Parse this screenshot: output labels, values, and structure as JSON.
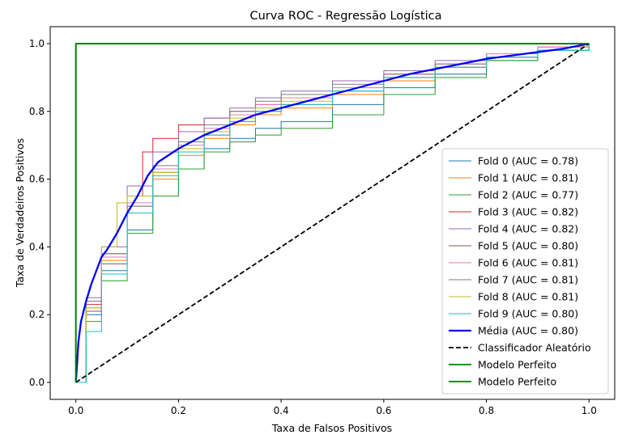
{
  "chart_data": {
    "type": "line",
    "title": "Curva ROC - Regressão Logística",
    "xlabel": "Taxa de Falsos Positivos",
    "ylabel": "Taxa de Verdadeiros Positivos",
    "xlim": [
      -0.05,
      1.05
    ],
    "ylim": [
      -0.05,
      1.05
    ],
    "xticks": [
      "0.0",
      "0.2",
      "0.4",
      "0.6",
      "0.8",
      "1.0"
    ],
    "yticks": [
      "0.0",
      "0.2",
      "0.4",
      "0.6",
      "0.8",
      "1.0"
    ],
    "grid": false,
    "legend_position": "lower right",
    "series": [
      {
        "name": "Fold 0 (AUC = 0.78)",
        "color": "#1f77b4",
        "width": 1,
        "dash": "",
        "step": true,
        "x": [
          0,
          0.02,
          0.05,
          0.1,
          0.15,
          0.2,
          0.25,
          0.3,
          0.35,
          0.4,
          0.5,
          0.6,
          0.7,
          0.8,
          0.9,
          1.0
        ],
        "y": [
          0,
          0.2,
          0.33,
          0.45,
          0.55,
          0.63,
          0.69,
          0.72,
          0.75,
          0.77,
          0.82,
          0.87,
          0.91,
          0.95,
          0.98,
          1.0
        ]
      },
      {
        "name": "Fold 1 (AUC = 0.81)",
        "color": "#ff7f0e",
        "width": 1,
        "dash": "",
        "step": true,
        "x": [
          0,
          0.02,
          0.05,
          0.1,
          0.15,
          0.2,
          0.25,
          0.3,
          0.35,
          0.4,
          0.5,
          0.6,
          0.7,
          0.8,
          0.9,
          1.0
        ],
        "y": [
          0,
          0.22,
          0.36,
          0.5,
          0.6,
          0.67,
          0.72,
          0.76,
          0.79,
          0.81,
          0.85,
          0.89,
          0.93,
          0.96,
          0.98,
          1.0
        ]
      },
      {
        "name": "Fold 2 (AUC = 0.77)",
        "color": "#2ca02c",
        "width": 1,
        "dash": "",
        "step": true,
        "x": [
          0,
          0.02,
          0.05,
          0.1,
          0.15,
          0.2,
          0.25,
          0.3,
          0.35,
          0.4,
          0.5,
          0.6,
          0.7,
          0.8,
          0.9,
          1.0
        ],
        "y": [
          0,
          0.18,
          0.3,
          0.44,
          0.55,
          0.63,
          0.68,
          0.71,
          0.73,
          0.75,
          0.79,
          0.85,
          0.9,
          0.95,
          0.98,
          1.0
        ]
      },
      {
        "name": "Fold 3 (AUC = 0.82)",
        "color": "#d62728",
        "width": 1,
        "dash": "",
        "step": true,
        "x": [
          0,
          0.02,
          0.05,
          0.1,
          0.13,
          0.15,
          0.2,
          0.25,
          0.3,
          0.35,
          0.4,
          0.5,
          0.6,
          0.7,
          0.8,
          0.9,
          1.0
        ],
        "y": [
          0,
          0.23,
          0.38,
          0.55,
          0.68,
          0.72,
          0.76,
          0.78,
          0.8,
          0.82,
          0.84,
          0.87,
          0.91,
          0.94,
          0.97,
          0.99,
          1.0
        ]
      },
      {
        "name": "Fold 4 (AUC = 0.82)",
        "color": "#9467bd",
        "width": 1,
        "dash": "",
        "step": true,
        "x": [
          0,
          0.02,
          0.05,
          0.1,
          0.15,
          0.2,
          0.25,
          0.3,
          0.35,
          0.4,
          0.5,
          0.6,
          0.7,
          0.8,
          0.9,
          1.0
        ],
        "y": [
          0,
          0.24,
          0.4,
          0.58,
          0.68,
          0.74,
          0.78,
          0.81,
          0.84,
          0.86,
          0.89,
          0.92,
          0.95,
          0.97,
          0.99,
          1.0
        ]
      },
      {
        "name": "Fold 5 (AUC = 0.80)",
        "color": "#8c564b",
        "width": 1,
        "dash": "",
        "step": true,
        "x": [
          0,
          0.02,
          0.05,
          0.1,
          0.15,
          0.2,
          0.25,
          0.3,
          0.35,
          0.4,
          0.5,
          0.6,
          0.7,
          0.8,
          0.9,
          1.0
        ],
        "y": [
          0,
          0.21,
          0.35,
          0.52,
          0.62,
          0.68,
          0.73,
          0.77,
          0.8,
          0.82,
          0.86,
          0.9,
          0.93,
          0.96,
          0.98,
          1.0
        ]
      },
      {
        "name": "Fold 6 (AUC = 0.81)",
        "color": "#e377c2",
        "width": 1,
        "dash": "",
        "step": true,
        "x": [
          0,
          0.02,
          0.05,
          0.1,
          0.15,
          0.2,
          0.25,
          0.3,
          0.35,
          0.4,
          0.5,
          0.6,
          0.7,
          0.8,
          0.9,
          1.0
        ],
        "y": [
          0,
          0.22,
          0.37,
          0.53,
          0.63,
          0.7,
          0.75,
          0.79,
          0.82,
          0.84,
          0.87,
          0.91,
          0.94,
          0.97,
          0.99,
          1.0
        ]
      },
      {
        "name": "Fold 7 (AUC = 0.81)",
        "color": "#7f7f7f",
        "width": 1,
        "dash": "",
        "step": true,
        "x": [
          0,
          0.02,
          0.05,
          0.1,
          0.15,
          0.2,
          0.25,
          0.3,
          0.35,
          0.4,
          0.5,
          0.6,
          0.7,
          0.8,
          0.9,
          1.0
        ],
        "y": [
          0,
          0.25,
          0.38,
          0.52,
          0.64,
          0.71,
          0.76,
          0.8,
          0.83,
          0.85,
          0.88,
          0.91,
          0.94,
          0.96,
          0.98,
          1.0
        ]
      },
      {
        "name": "Fold 8 (AUC = 0.81)",
        "color": "#bcbd22",
        "width": 1,
        "dash": "",
        "step": true,
        "x": [
          0,
          0.02,
          0.05,
          0.08,
          0.1,
          0.15,
          0.2,
          0.25,
          0.3,
          0.35,
          0.4,
          0.5,
          0.6,
          0.7,
          0.8,
          0.9,
          1.0
        ],
        "y": [
          0,
          0.22,
          0.4,
          0.53,
          0.55,
          0.62,
          0.69,
          0.74,
          0.78,
          0.81,
          0.83,
          0.86,
          0.9,
          0.93,
          0.96,
          0.98,
          1.0
        ]
      },
      {
        "name": "Fold 9 (AUC = 0.80)",
        "color": "#17becf",
        "width": 1,
        "dash": "",
        "step": true,
        "x": [
          0,
          0.02,
          0.05,
          0.1,
          0.15,
          0.2,
          0.25,
          0.3,
          0.35,
          0.4,
          0.5,
          0.6,
          0.7,
          0.8,
          0.9,
          1.0
        ],
        "y": [
          0,
          0.15,
          0.32,
          0.5,
          0.61,
          0.68,
          0.73,
          0.77,
          0.8,
          0.82,
          0.86,
          0.9,
          0.93,
          0.96,
          0.98,
          1.0
        ]
      },
      {
        "name": "Média (AUC = 0.80)",
        "color": "#0000ff",
        "width": 2.3,
        "dash": "",
        "step": false,
        "x": [
          0,
          0.005,
          0.01,
          0.02,
          0.03,
          0.04,
          0.05,
          0.06,
          0.08,
          0.1,
          0.12,
          0.14,
          0.16,
          0.18,
          0.2,
          0.25,
          0.3,
          0.35,
          0.4,
          0.45,
          0.5,
          0.55,
          0.6,
          0.65,
          0.7,
          0.75,
          0.8,
          0.85,
          0.9,
          0.95,
          1.0
        ],
        "y": [
          0,
          0.12,
          0.18,
          0.24,
          0.29,
          0.33,
          0.37,
          0.39,
          0.44,
          0.5,
          0.55,
          0.61,
          0.65,
          0.67,
          0.69,
          0.73,
          0.76,
          0.79,
          0.81,
          0.83,
          0.85,
          0.87,
          0.89,
          0.91,
          0.925,
          0.94,
          0.955,
          0.965,
          0.975,
          0.985,
          1.0
        ]
      },
      {
        "name": "Classificador Aleatório",
        "color": "#000000",
        "width": 1.8,
        "dash": "6,3",
        "step": false,
        "x": [
          0,
          1
        ],
        "y": [
          0,
          1
        ]
      },
      {
        "name": "Modelo Perfeito",
        "color": "#008000",
        "width": 1.8,
        "dash": "",
        "step": false,
        "x": [
          0,
          0,
          1
        ],
        "y": [
          0,
          1,
          1
        ]
      },
      {
        "name": "Modelo Perfeito",
        "color": "#008000",
        "width": 1.8,
        "dash": "",
        "step": false,
        "x": [
          0,
          0,
          1
        ],
        "y": [
          0,
          1,
          1
        ]
      }
    ]
  }
}
